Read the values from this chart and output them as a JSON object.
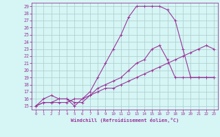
{
  "xlabel": "Windchill (Refroidissement éolien,°C)",
  "bg_color": "#d6f5f5",
  "line_color": "#993399",
  "grid_color": "#aacccc",
  "xlim": [
    -0.5,
    23.5
  ],
  "ylim": [
    14.5,
    29.5
  ],
  "xticks": [
    0,
    1,
    2,
    3,
    4,
    5,
    6,
    7,
    8,
    9,
    10,
    11,
    12,
    13,
    14,
    15,
    16,
    17,
    18,
    19,
    20,
    21,
    22,
    23
  ],
  "yticks": [
    15,
    16,
    17,
    18,
    19,
    20,
    21,
    22,
    23,
    24,
    25,
    26,
    27,
    28,
    29
  ],
  "line1_x": [
    0,
    1,
    2,
    3,
    4,
    5,
    6,
    7,
    8,
    9,
    10,
    11,
    12,
    13,
    14,
    15,
    16,
    17,
    18,
    19,
    20,
    21,
    22,
    23
  ],
  "line1_y": [
    15.0,
    16.0,
    16.5,
    16.0,
    16.0,
    15.0,
    16.0,
    17.0,
    19.0,
    21.0,
    23.0,
    25.0,
    27.5,
    29.0,
    29.0,
    29.0,
    29.0,
    28.5,
    27.0,
    23.0,
    19.0,
    19.0,
    19.0,
    19.0
  ],
  "line2_x": [
    0,
    1,
    2,
    3,
    4,
    5,
    6,
    7,
    8,
    9,
    10,
    11,
    12,
    13,
    14,
    15,
    16,
    17,
    18,
    19,
    20,
    21,
    22,
    23
  ],
  "line2_y": [
    15.0,
    15.5,
    15.5,
    15.5,
    15.5,
    16.0,
    16.0,
    16.5,
    17.0,
    17.5,
    17.5,
    18.0,
    18.5,
    19.0,
    19.5,
    20.0,
    20.5,
    21.0,
    21.5,
    22.0,
    22.5,
    23.0,
    23.5,
    23.0
  ],
  "line3_x": [
    0,
    1,
    2,
    3,
    4,
    5,
    6,
    7,
    8,
    9,
    10,
    11,
    12,
    13,
    14,
    15,
    16,
    17,
    18,
    19,
    20,
    21,
    22,
    23
  ],
  "line3_y": [
    15.0,
    15.5,
    15.5,
    16.0,
    16.0,
    15.5,
    15.5,
    16.5,
    17.5,
    18.0,
    18.5,
    19.0,
    20.0,
    21.0,
    21.5,
    23.0,
    23.5,
    21.5,
    19.0,
    19.0,
    19.0,
    19.0,
    19.0,
    19.0
  ]
}
